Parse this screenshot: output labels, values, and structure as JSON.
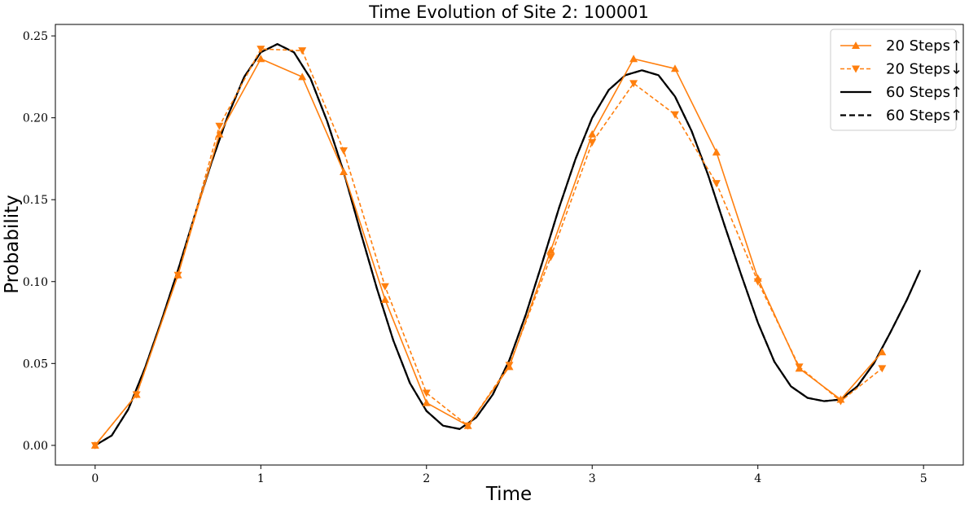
{
  "chart_data": {
    "type": "line",
    "title": "Time Evolution of Site 2: 100001",
    "xlabel": "Time",
    "ylabel": "Probability",
    "xlim": [
      -0.24,
      5.24
    ],
    "ylim": [
      -0.012,
      0.257
    ],
    "x_ticks": [
      "0",
      "1",
      "2",
      "3",
      "4",
      "5"
    ],
    "y_ticks": [
      "0.00",
      "0.05",
      "0.10",
      "0.15",
      "0.20",
      "0.25"
    ],
    "legend_position": "upper right",
    "colors": {
      "orange": "#ff7f0e",
      "black": "#000000"
    },
    "series": [
      {
        "name": "20 Steps↑",
        "style": "solid",
        "marker": "triangle-up",
        "color": "#ff7f0e",
        "x": [
          0,
          0.25,
          0.5,
          0.75,
          1.0,
          1.25,
          1.5,
          1.75,
          2.0,
          2.25,
          2.5,
          2.75,
          3.0,
          3.25,
          3.5,
          3.75,
          4.0,
          4.25,
          4.5,
          4.75
        ],
        "y": [
          0.0,
          0.031,
          0.104,
          0.19,
          0.236,
          0.225,
          0.167,
          0.089,
          0.026,
          0.012,
          0.048,
          0.119,
          0.19,
          0.236,
          0.23,
          0.179,
          0.102,
          0.047,
          0.028,
          0.057
        ]
      },
      {
        "name": "20 Steps↓",
        "style": "dashed",
        "marker": "triangle-down",
        "color": "#ff7f0e",
        "x": [
          0,
          0.25,
          0.5,
          0.75,
          1.0,
          1.25,
          1.5,
          1.75,
          2.0,
          2.25,
          2.5,
          2.75,
          3.0,
          3.25,
          3.5,
          3.75,
          4.0,
          4.25,
          4.5,
          4.75
        ],
        "y": [
          0.0,
          0.031,
          0.104,
          0.195,
          0.242,
          0.241,
          0.18,
          0.097,
          0.032,
          0.012,
          0.049,
          0.115,
          0.185,
          0.221,
          0.202,
          0.16,
          0.1,
          0.048,
          0.027,
          0.047
        ]
      },
      {
        "name": "60 Steps↑",
        "style": "solid",
        "marker": "none",
        "color": "#000000",
        "x": [
          0,
          0.1,
          0.2,
          0.3,
          0.4,
          0.5,
          0.6,
          0.7,
          0.8,
          0.9,
          1.0,
          1.1,
          1.2,
          1.3,
          1.4,
          1.5,
          1.6,
          1.7,
          1.8,
          1.9,
          2.0,
          2.1,
          2.2,
          2.3,
          2.4,
          2.5,
          2.6,
          2.7,
          2.8,
          2.9,
          3.0,
          3.1,
          3.2,
          3.3,
          3.4,
          3.5,
          3.6,
          3.7,
          3.8,
          3.9,
          4.0,
          4.1,
          4.2,
          4.3,
          4.4,
          4.5,
          4.6,
          4.7,
          4.8,
          4.9,
          4.98
        ],
        "y": [
          0.0,
          0.006,
          0.022,
          0.047,
          0.076,
          0.107,
          0.14,
          0.172,
          0.201,
          0.225,
          0.24,
          0.245,
          0.24,
          0.224,
          0.198,
          0.167,
          0.131,
          0.096,
          0.064,
          0.038,
          0.021,
          0.012,
          0.01,
          0.017,
          0.031,
          0.052,
          0.08,
          0.112,
          0.145,
          0.175,
          0.2,
          0.217,
          0.226,
          0.229,
          0.226,
          0.213,
          0.192,
          0.165,
          0.134,
          0.104,
          0.075,
          0.051,
          0.036,
          0.029,
          0.027,
          0.028,
          0.036,
          0.05,
          0.069,
          0.089,
          0.107
        ]
      },
      {
        "name": "60 Steps↑",
        "style": "dashed",
        "marker": "none",
        "color": "#000000",
        "x": [
          0,
          0.1,
          0.2,
          0.3,
          0.4,
          0.5,
          0.6,
          0.7,
          0.8,
          0.9,
          1.0,
          1.1,
          1.2,
          1.3,
          1.4,
          1.5,
          1.6,
          1.7,
          1.8,
          1.9,
          2.0,
          2.1,
          2.2,
          2.3,
          2.4,
          2.5,
          2.6,
          2.7,
          2.8,
          2.9,
          3.0,
          3.1,
          3.2,
          3.3,
          3.4,
          3.5,
          3.6,
          3.7,
          3.8,
          3.9,
          4.0,
          4.1,
          4.2,
          4.3,
          4.4,
          4.5,
          4.6,
          4.7,
          4.8,
          4.9,
          4.98
        ],
        "y": [
          0.0,
          0.006,
          0.022,
          0.047,
          0.076,
          0.107,
          0.14,
          0.172,
          0.201,
          0.225,
          0.24,
          0.245,
          0.24,
          0.224,
          0.198,
          0.167,
          0.131,
          0.096,
          0.064,
          0.038,
          0.021,
          0.012,
          0.01,
          0.017,
          0.031,
          0.052,
          0.08,
          0.112,
          0.145,
          0.175,
          0.2,
          0.217,
          0.226,
          0.229,
          0.226,
          0.213,
          0.192,
          0.165,
          0.134,
          0.104,
          0.075,
          0.051,
          0.036,
          0.029,
          0.027,
          0.028,
          0.036,
          0.05,
          0.069,
          0.089,
          0.107
        ]
      }
    ]
  }
}
